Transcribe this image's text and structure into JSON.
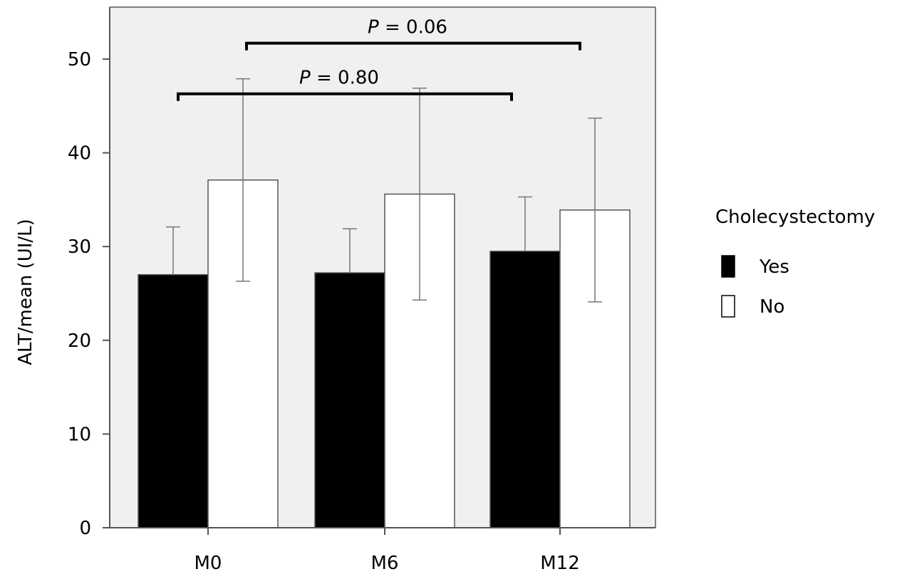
{
  "chart_data": {
    "type": "bar",
    "title": "",
    "xlabel": "",
    "ylabel": "ALT/mean (UI/L)",
    "ylim": [
      0,
      55
    ],
    "yticks": [
      0,
      10,
      20,
      30,
      40,
      50
    ],
    "grid": false,
    "background_color": "#f0f0f0",
    "categories": [
      "M0",
      "M6",
      "M12"
    ],
    "legend": {
      "title": "Cholecystectomy",
      "placement": "right"
    },
    "series": [
      {
        "name": "Yes",
        "color": "#000000",
        "values": [
          27.0,
          27.2,
          29.5
        ],
        "error_upper": [
          32.1,
          31.9,
          35.3
        ],
        "error_lower": [
          27.0,
          27.2,
          29.5
        ]
      },
      {
        "name": "No",
        "color": "#ffffff",
        "values": [
          37.1,
          35.6,
          33.9
        ],
        "error_upper": [
          47.9,
          46.9,
          43.7
        ],
        "error_lower": [
          26.3,
          24.3,
          24.1
        ]
      }
    ],
    "annotations": [
      {
        "prefix": "P",
        "text": " = 0.80",
        "from_category": "M0",
        "to_category": "M12",
        "bracket_y": 46.3,
        "label_y": 48.3
      },
      {
        "prefix": "P",
        "text": " = 0.06",
        "from_category": "M0",
        "to_category": "M12",
        "bracket_y": 51.7,
        "label_y": 53.7
      }
    ]
  }
}
